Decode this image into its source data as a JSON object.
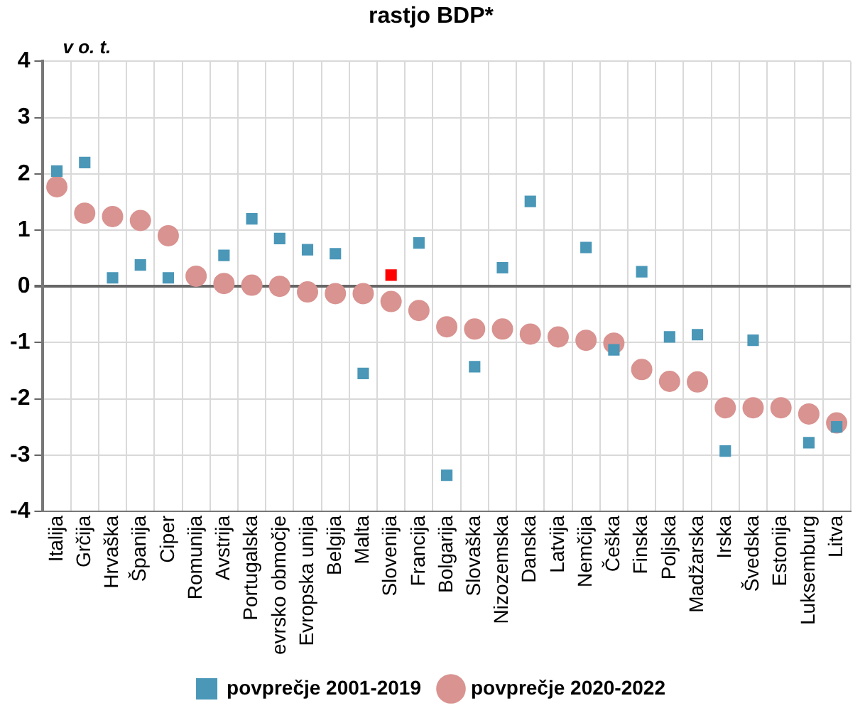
{
  "chart_data": {
    "type": "scatter",
    "title": "rastjo BDP*",
    "ylabel": "v o. t.",
    "categories": [
      "Italija",
      "Grčija",
      "Hrvaška",
      "Španija",
      "Ciper",
      "Romunija",
      "Avstrija",
      "Portugalska",
      "evrsko območje",
      "Evropska unija",
      "Belgija",
      "Malta",
      "Slovenija",
      "Francija",
      "Bolgarija",
      "Slovaška",
      "Nizozemska",
      "Danska",
      "Latvija",
      "Nemčija",
      "Češka",
      "Finska",
      "Poljska",
      "Madžarska",
      "Irska",
      "Švedska",
      "Estonija",
      "Luksemburg",
      "Litva"
    ],
    "series": [
      {
        "name": "povprečje 2001-2019",
        "color": "#4a97b8",
        "marker": "square",
        "colors": [
          "#4a97b8",
          "#4a97b8",
          "#4a97b8",
          "#4a97b8",
          "#4a97b8",
          "#4a97b8",
          "#4a97b8",
          "#4a97b8",
          "#4a97b8",
          "#4a97b8",
          "#4a97b8",
          "#4a97b8",
          "#ff0000",
          "#4a97b8",
          "#4a97b8",
          "#4a97b8",
          "#4a97b8",
          "#4a97b8",
          "#4a97b8",
          "#4a97b8",
          "#4a97b8",
          "#4a97b8",
          "#4a97b8",
          "#4a97b8",
          "#4a97b8",
          "#4a97b8",
          "#4a97b8",
          "#4a97b8",
          "#4a97b8"
        ],
        "values": [
          2.05,
          2.2,
          0.15,
          0.38,
          0.15,
          null,
          0.55,
          1.2,
          0.85,
          0.65,
          0.58,
          -1.55,
          0.2,
          0.77,
          -3.36,
          -1.43,
          0.33,
          1.51,
          null,
          0.69,
          -1.13,
          0.26,
          -0.9,
          -0.86,
          -2.93,
          -0.96,
          null,
          -2.78,
          -2.5
        ]
      },
      {
        "name": "povprečje 2020-2022",
        "color": "#d99390",
        "marker": "circle",
        "values": [
          1.77,
          1.3,
          1.24,
          1.17,
          0.9,
          0.18,
          0.05,
          0.02,
          0.0,
          -0.1,
          -0.13,
          -0.13,
          -0.27,
          -0.43,
          -0.72,
          -0.76,
          -0.76,
          -0.85,
          -0.9,
          -0.96,
          -1.01,
          -1.48,
          -1.69,
          -1.7,
          -2.16,
          -2.16,
          -2.16,
          -2.27,
          -2.43
        ]
      }
    ],
    "ylim": [
      -4,
      4
    ],
    "yticks": [
      -4,
      -3,
      -2,
      -1,
      0,
      1,
      2,
      3,
      4
    ],
    "grid": true,
    "legend": "bottom"
  }
}
